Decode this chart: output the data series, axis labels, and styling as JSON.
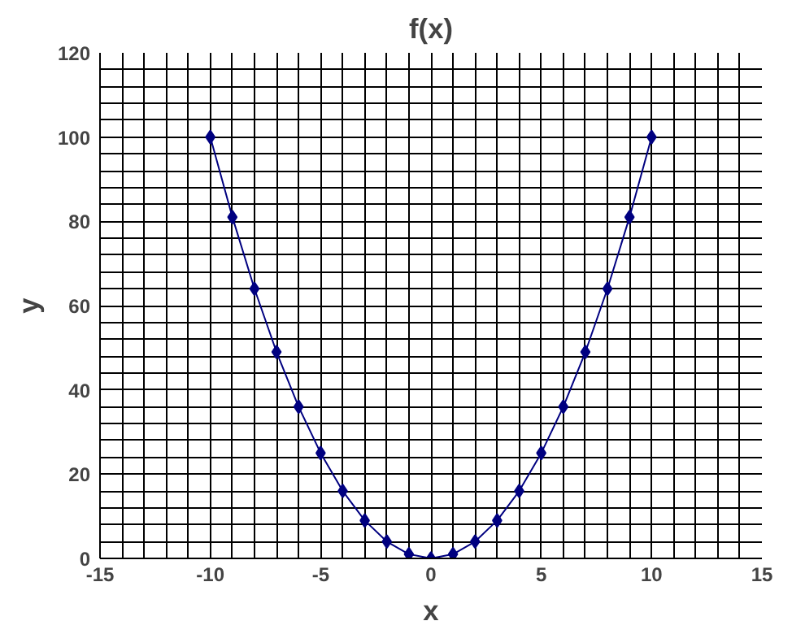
{
  "chart_data": {
    "type": "line",
    "title": "f(x)",
    "xlabel": "x",
    "ylabel": "y",
    "x": [
      -10,
      -9,
      -8,
      -7,
      -6,
      -5,
      -4,
      -3,
      -2,
      -1,
      0,
      1,
      2,
      3,
      4,
      5,
      6,
      7,
      8,
      9,
      10
    ],
    "series": [
      {
        "color": "#000080",
        "values": [
          100,
          81,
          64,
          49,
          36,
          25,
          16,
          9,
          4,
          1,
          0,
          1,
          4,
          9,
          16,
          25,
          36,
          49,
          64,
          81,
          100
        ]
      }
    ],
    "xlim": [
      -15,
      15
    ],
    "ylim": [
      0,
      120
    ],
    "xticks": [
      -15,
      {
        "value": -14,
        "label": null
      },
      {
        "value": -13,
        "label": null
      },
      {
        "value": -12,
        "label": null
      },
      {
        "value": -11,
        "label": null
      },
      -10,
      {
        "value": -9,
        "label": null
      },
      {
        "value": -8,
        "label": null
      },
      {
        "value": -7,
        "label": null
      },
      {
        "value": -6,
        "label": null
      },
      -5,
      {
        "value": -4,
        "label": null
      },
      {
        "value": -3,
        "label": null
      },
      {
        "value": -2,
        "label": null
      },
      {
        "value": -1,
        "label": null
      },
      0,
      {
        "value": 1,
        "label": null
      },
      {
        "value": 2,
        "label": null
      },
      {
        "value": 3,
        "label": null
      },
      {
        "value": 4,
        "label": null
      },
      5,
      {
        "value": 6,
        "label": null
      },
      {
        "value": 7,
        "label": null
      },
      {
        "value": 8,
        "label": null
      },
      {
        "value": 9,
        "label": null
      },
      10,
      {
        "value": 11,
        "label": null
      },
      {
        "value": 12,
        "label": null
      },
      {
        "value": 13,
        "label": null
      },
      {
        "value": 14,
        "label": null
      },
      15
    ],
    "yticks": [
      0,
      {
        "value": 4,
        "label": null
      },
      {
        "value": 8,
        "label": null
      },
      {
        "value": 12,
        "label": null
      },
      {
        "value": 16,
        "label": null
      },
      20,
      {
        "value": 24,
        "label": null
      },
      {
        "value": 28,
        "label": null
      },
      {
        "value": 32,
        "label": null
      },
      {
        "value": 36,
        "label": null
      },
      40,
      {
        "value": 44,
        "label": null
      },
      {
        "value": 48,
        "label": null
      },
      {
        "value": 52,
        "label": null
      },
      {
        "value": 56,
        "label": null
      },
      60,
      {
        "value": 64,
        "label": null
      },
      {
        "value": 68,
        "label": null
      },
      {
        "value": 72,
        "label": null
      },
      {
        "value": 76,
        "label": null
      },
      80,
      {
        "value": 84,
        "label": null
      },
      {
        "value": 88,
        "label": null
      },
      {
        "value": 92,
        "label": null
      },
      {
        "value": 96,
        "label": null
      },
      100,
      {
        "value": 104,
        "label": null
      },
      {
        "value": 108,
        "label": null
      },
      {
        "value": 112,
        "label": null
      },
      {
        "value": 116,
        "label": null
      },
      120
    ],
    "grid": true,
    "marker": "diamond",
    "line_style": "solid"
  }
}
